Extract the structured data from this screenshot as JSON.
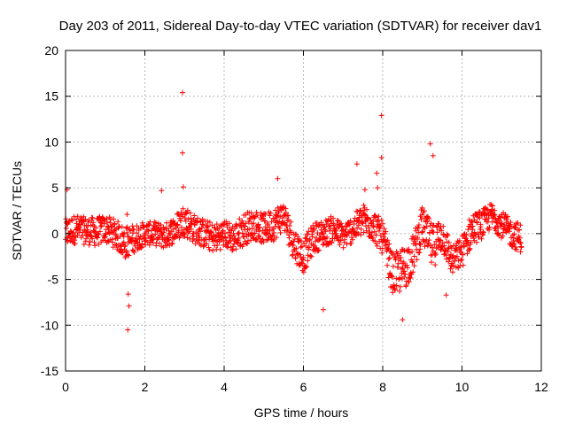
{
  "chart_data": {
    "type": "scatter",
    "title": "Day 203 of 2011, Sidereal Day-to-day VTEC variation (SDTVAR) for receiver dav1",
    "xlabel": "GPS time / hours",
    "ylabel": "SDTVAR / TECUs",
    "xlim": [
      0,
      12
    ],
    "ylim": [
      -15,
      20
    ],
    "x_ticks": [
      0,
      2,
      4,
      6,
      8,
      10,
      12
    ],
    "y_ticks": [
      -15,
      -10,
      -5,
      0,
      5,
      10,
      15,
      20
    ],
    "grid": true,
    "marker": "plus",
    "series": [
      {
        "name": "SDTVAR",
        "color": "#ff0000",
        "description_of_band": "dense scatter of points; band listed as [hour, center, half-width]",
        "band": [
          [
            0.0,
            0.0,
            1.6
          ],
          [
            0.25,
            0.5,
            1.6
          ],
          [
            0.5,
            0.3,
            1.5
          ],
          [
            0.75,
            0.2,
            1.6
          ],
          [
            1.0,
            0.5,
            1.5
          ],
          [
            1.25,
            0.0,
            1.6
          ],
          [
            1.5,
            -1.0,
            1.8
          ],
          [
            1.75,
            -0.5,
            1.5
          ],
          [
            2.0,
            0.0,
            1.3
          ],
          [
            2.25,
            0.0,
            1.3
          ],
          [
            2.5,
            -0.3,
            1.4
          ],
          [
            2.75,
            0.5,
            1.5
          ],
          [
            3.0,
            1.5,
            1.8
          ],
          [
            3.25,
            0.5,
            1.6
          ],
          [
            3.5,
            0.0,
            1.6
          ],
          [
            3.75,
            -0.5,
            1.6
          ],
          [
            4.0,
            0.0,
            1.5
          ],
          [
            4.25,
            -0.5,
            1.6
          ],
          [
            4.5,
            0.5,
            1.8
          ],
          [
            4.75,
            1.0,
            1.6
          ],
          [
            5.0,
            0.5,
            1.7
          ],
          [
            5.25,
            1.0,
            1.8
          ],
          [
            5.5,
            2.0,
            1.6
          ],
          [
            5.75,
            -1.0,
            1.8
          ],
          [
            6.0,
            -2.5,
            1.8
          ],
          [
            6.25,
            -0.5,
            1.7
          ],
          [
            6.5,
            0.0,
            1.5
          ],
          [
            6.75,
            0.5,
            1.5
          ],
          [
            7.0,
            -0.3,
            1.4
          ],
          [
            7.25,
            0.5,
            1.5
          ],
          [
            7.5,
            1.5,
            1.8
          ],
          [
            7.75,
            1.0,
            1.8
          ],
          [
            8.0,
            -0.5,
            1.8
          ],
          [
            8.25,
            -4.5,
            2.2
          ],
          [
            8.5,
            -4.0,
            2.5
          ],
          [
            8.75,
            -2.5,
            2.2
          ],
          [
            9.0,
            1.0,
            2.0
          ],
          [
            9.25,
            -1.5,
            2.5
          ],
          [
            9.5,
            0.0,
            2.0
          ],
          [
            9.75,
            -3.0,
            1.6
          ],
          [
            10.0,
            -2.0,
            1.8
          ],
          [
            10.25,
            0.5,
            1.8
          ],
          [
            10.5,
            1.0,
            1.6
          ],
          [
            10.75,
            2.0,
            1.4
          ],
          [
            11.0,
            1.0,
            1.5
          ],
          [
            11.25,
            0.0,
            1.5
          ],
          [
            11.5,
            -0.5,
            1.6
          ]
        ],
        "outliers": [
          [
            0.04,
            4.8
          ],
          [
            1.55,
            2.1
          ],
          [
            1.58,
            -6.6
          ],
          [
            1.6,
            -7.9
          ],
          [
            1.57,
            -10.5
          ],
          [
            2.95,
            15.4
          ],
          [
            2.95,
            8.8
          ],
          [
            2.97,
            5.1
          ],
          [
            2.42,
            4.7
          ],
          [
            5.35,
            6.0
          ],
          [
            6.5,
            -8.3
          ],
          [
            7.35,
            7.6
          ],
          [
            7.55,
            4.8
          ],
          [
            7.85,
            6.6
          ],
          [
            7.87,
            5.0
          ],
          [
            7.97,
            12.9
          ],
          [
            7.97,
            8.3
          ],
          [
            8.5,
            -9.4
          ],
          [
            9.2,
            9.8
          ],
          [
            9.27,
            8.5
          ],
          [
            9.6,
            -6.7
          ]
        ]
      }
    ]
  }
}
